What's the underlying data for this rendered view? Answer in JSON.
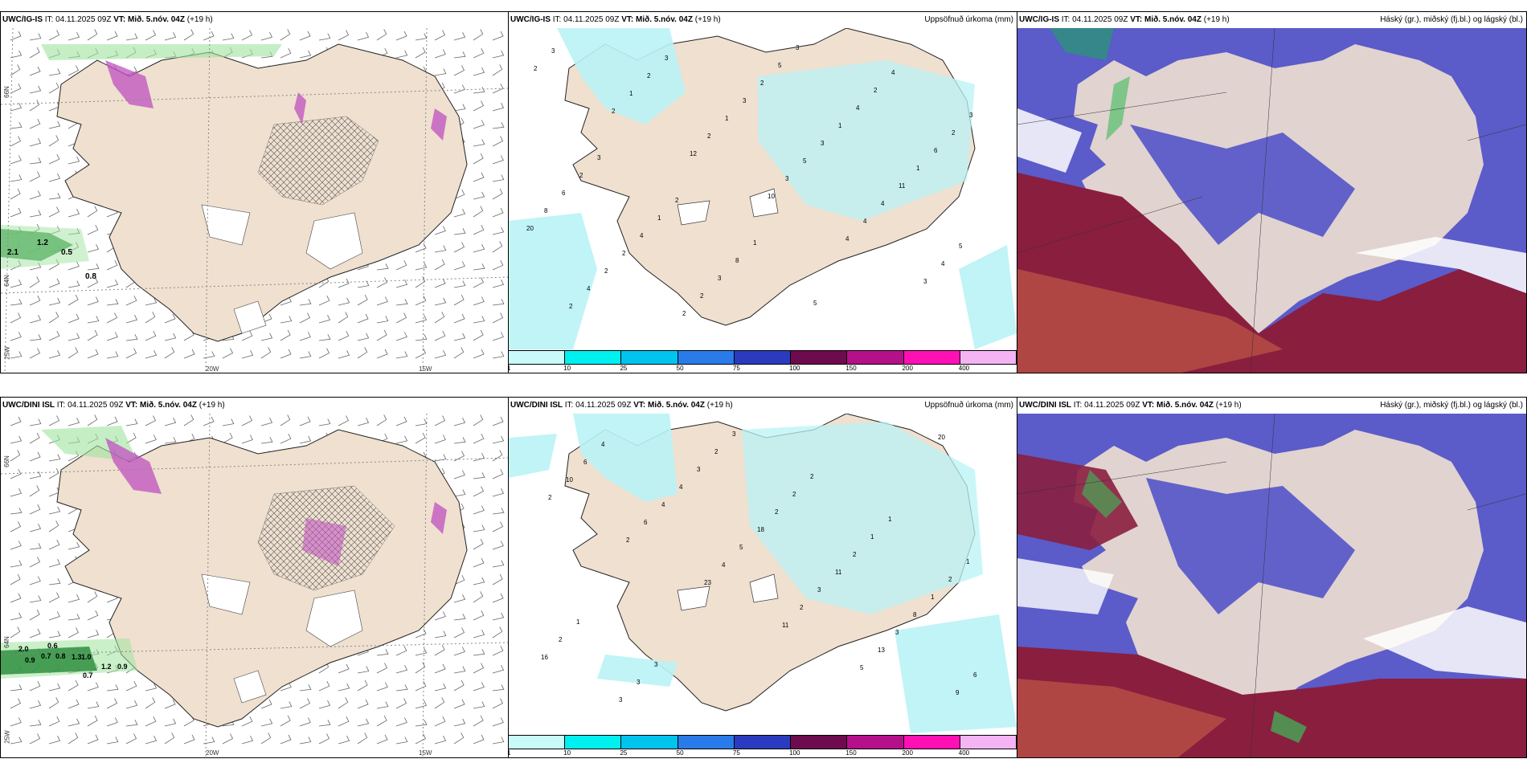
{
  "rows": [
    {
      "model": "UWC/IG-IS",
      "it_label": "IT:",
      "it": "04.11.2025 09Z",
      "vt_label": "VT:",
      "vt": "Mið. 5.nóv. 04Z",
      "lead": "(+19 h)",
      "wind_values": [
        "0.5",
        "0.8",
        "2.1",
        "1.2"
      ],
      "precip_values": [
        "2",
        "2",
        "12",
        "10",
        "4",
        "3",
        "3",
        "1",
        "2",
        "3",
        "4",
        "4",
        "2",
        "2",
        "1",
        "5",
        "4",
        "5",
        "4",
        "3",
        "3",
        "3",
        "11",
        "20",
        "2",
        "2",
        "2",
        "1",
        "1",
        "8",
        "2",
        "2",
        "5",
        "4",
        "6",
        "6",
        "4",
        "3",
        "3",
        "2",
        "2",
        "2",
        "1",
        "8",
        "5",
        "4",
        "3",
        "3",
        "2",
        "1"
      ]
    },
    {
      "model": "UWC/DINI ISL",
      "it_label": "IT:",
      "it": "04.11.2025 09Z",
      "vt_label": "VT:",
      "vt": "Mið. 5.nóv. 04Z",
      "lead": "(+19 h)",
      "wind_values": [
        "2.0",
        "0.6",
        "0.7",
        "0.8",
        "1.3",
        "1.0",
        "0.9",
        "0.7",
        "1.2",
        "0.9"
      ],
      "precip_values": [
        "2",
        "2",
        "23",
        "11",
        "5",
        "20",
        "10",
        "6",
        "4",
        "2",
        "13",
        "9",
        "6",
        "4",
        "5",
        "3",
        "3",
        "6",
        "4",
        "4",
        "18",
        "11",
        "8",
        "16",
        "3",
        "3",
        "2",
        "2",
        "1",
        "2",
        "3",
        "2",
        "2",
        "1",
        "2",
        "1",
        "3",
        "3",
        "2",
        "1",
        "1"
      ]
    }
  ],
  "precip_title": "Uppsöfnuð úrkoma (mm)",
  "cloud_title": "Háský (gr.), miðský (fj.bl.) og lágský (bl.)",
  "lat_labels": [
    "66N",
    "64N"
  ],
  "lon_labels": [
    "25W",
    "20W",
    "15W"
  ],
  "legend": {
    "ticks": [
      "1",
      "10",
      "25",
      "50",
      "75",
      "100",
      "150",
      "200",
      "400"
    ],
    "colors": [
      "#c8fafa",
      "#00f0f0",
      "#00c4ee",
      "#2a7bea",
      "#2a3bc0",
      "#6e0a4e",
      "#b4108a",
      "#ff10b4",
      "#f4b4f4"
    ]
  },
  "colors": {
    "land": "#efe0d0",
    "sea": "#ffffff",
    "precip_light": "#b9f3f6",
    "high_cloud": "#5b5bc9",
    "low_cloud": "#8a1e3e",
    "green": "#3cbc5a"
  }
}
